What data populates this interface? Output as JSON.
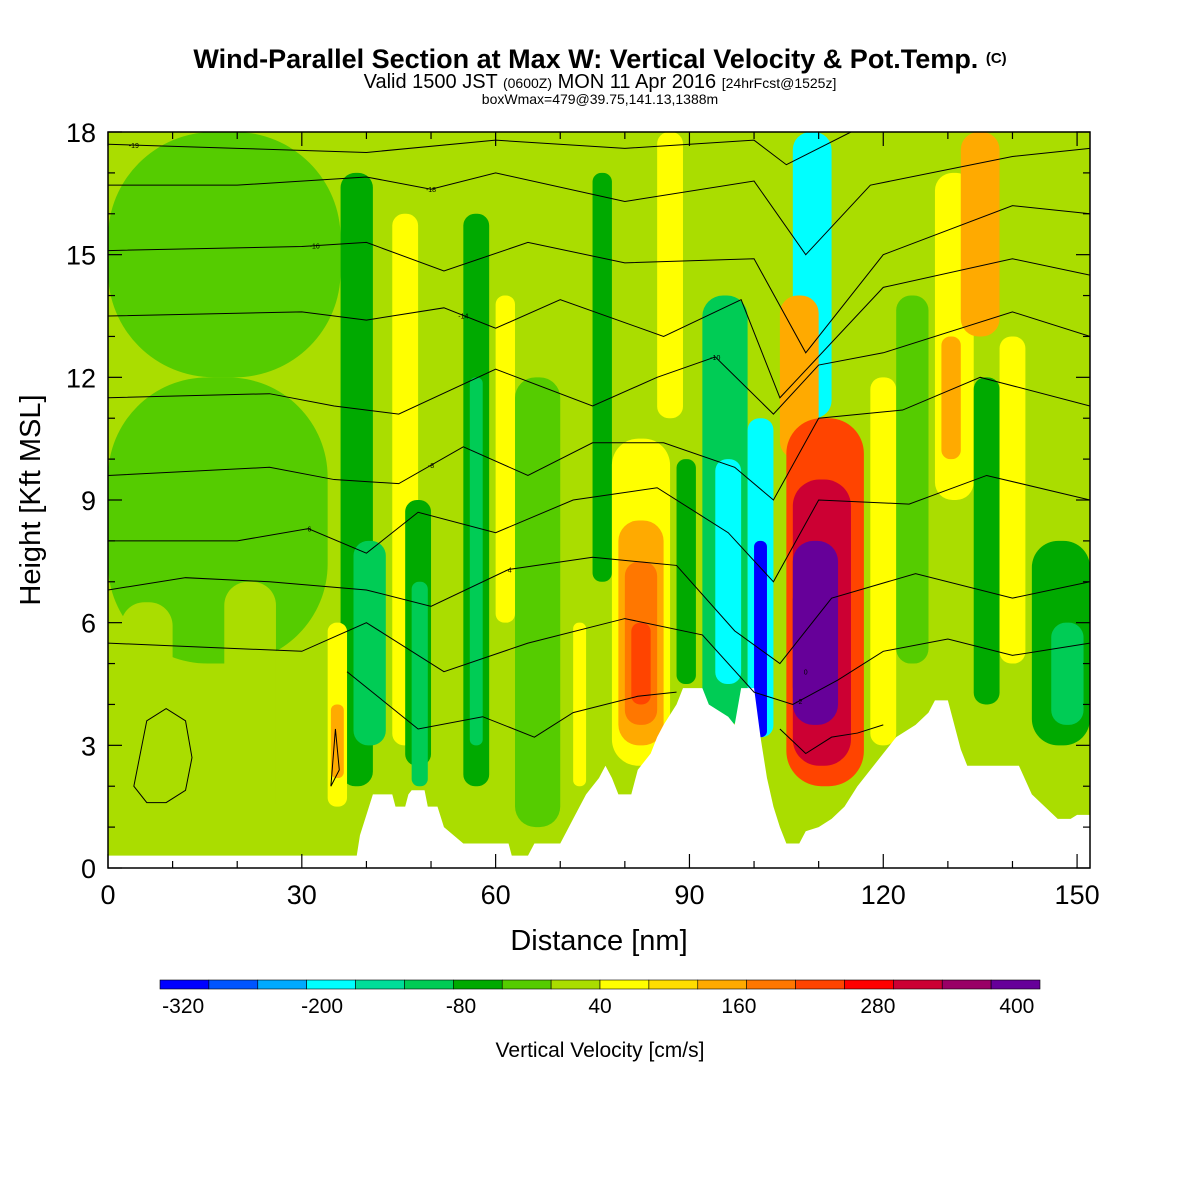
{
  "title": {
    "main": "Wind-Parallel Section at Max W: Vertical Velocity & Pot.Temp.",
    "copyright": "(C)",
    "valid_prefix": "Valid 1500 JST",
    "valid_utc": "(0600Z)",
    "valid_date": "MON 11 Apr 2016",
    "forecast": "[24hrFcst@1525z]",
    "box": "boxWmax=479@39.75,141.13,1388m"
  },
  "chart_data": {
    "type": "heatmap",
    "xlabel": "Distance [nm]",
    "ylabel": "Height [Kft MSL]",
    "xlim": [
      0,
      152
    ],
    "ylim": [
      0,
      18
    ],
    "x_ticks": [
      0,
      30,
      60,
      90,
      120,
      150
    ],
    "y_ticks": [
      0,
      3,
      6,
      9,
      12,
      15,
      18
    ],
    "x_tick_labels": [
      "0",
      "30",
      "60",
      "90",
      "120",
      "150"
    ],
    "y_tick_labels": [
      "0",
      "3",
      "6",
      "9",
      "12",
      "15",
      "18"
    ],
    "background_level": 0,
    "terrain_kft": [
      [
        0,
        0.3
      ],
      [
        38.5,
        0.3
      ],
      [
        39,
        0.8
      ],
      [
        40,
        1.3
      ],
      [
        41,
        1.8
      ],
      [
        44,
        1.8
      ],
      [
        44.5,
        1.5
      ],
      [
        46,
        1.5
      ],
      [
        46.5,
        1.8
      ],
      [
        47,
        1.9
      ],
      [
        49,
        1.9
      ],
      [
        49.5,
        1.5
      ],
      [
        51,
        1.5
      ],
      [
        52,
        1.0
      ],
      [
        55,
        0.6
      ],
      [
        62,
        0.6
      ],
      [
        62.5,
        0.3
      ],
      [
        65,
        0.3
      ],
      [
        66,
        0.6
      ],
      [
        70,
        0.6
      ],
      [
        71,
        0.9
      ],
      [
        72,
        1.2
      ],
      [
        74,
        1.8
      ],
      [
        76,
        2.2
      ],
      [
        77,
        2.5
      ],
      [
        78,
        2.2
      ],
      [
        79,
        1.8
      ],
      [
        81,
        1.8
      ],
      [
        82,
        2.4
      ],
      [
        84,
        2.8
      ],
      [
        85,
        3.2
      ],
      [
        86,
        3.5
      ],
      [
        88,
        4.0
      ],
      [
        89,
        4.4
      ],
      [
        92,
        4.4
      ],
      [
        93,
        4.0
      ],
      [
        96,
        3.7
      ],
      [
        97,
        3.5
      ],
      [
        98,
        4.4
      ],
      [
        100,
        4.4
      ],
      [
        101,
        3.2
      ],
      [
        102,
        2.2
      ],
      [
        103,
        1.5
      ],
      [
        104,
        1.0
      ],
      [
        105,
        0.6
      ],
      [
        107,
        0.6
      ],
      [
        108,
        0.9
      ],
      [
        110,
        1.0
      ],
      [
        112,
        1.2
      ],
      [
        114,
        1.5
      ],
      [
        116,
        2.0
      ],
      [
        118,
        2.4
      ],
      [
        120,
        2.8
      ],
      [
        122,
        3.2
      ],
      [
        125,
        3.5
      ],
      [
        127,
        3.8
      ],
      [
        128,
        4.1
      ],
      [
        130,
        4.1
      ],
      [
        131,
        3.5
      ],
      [
        132,
        2.9
      ],
      [
        133,
        2.5
      ],
      [
        141,
        2.5
      ],
      [
        143,
        1.8
      ],
      [
        145,
        1.5
      ],
      [
        147,
        1.2
      ],
      [
        149,
        1.2
      ],
      [
        150,
        1.3
      ],
      [
        152,
        1.3
      ]
    ],
    "cells": [
      {
        "x": [
          0,
          152
        ],
        "y": [
          0.3,
          18
        ],
        "value": 0
      },
      {
        "x": [
          0,
          36
        ],
        "y": [
          12,
          18
        ],
        "value": -40
      },
      {
        "x": [
          0,
          34
        ],
        "y": [
          5,
          12
        ],
        "value": -40
      },
      {
        "x": [
          2,
          10
        ],
        "y": [
          0.6,
          6.5
        ],
        "value": 0
      },
      {
        "x": [
          18,
          26
        ],
        "y": [
          1,
          7
        ],
        "value": 0
      },
      {
        "x": [
          36,
          41
        ],
        "y": [
          2,
          17
        ],
        "value": -80
      },
      {
        "x": [
          38,
          43
        ],
        "y": [
          3,
          8
        ],
        "value": -120
      },
      {
        "x": [
          34,
          37
        ],
        "y": [
          1.5,
          6
        ],
        "value": 40
      },
      {
        "x": [
          34.5,
          36.5
        ],
        "y": [
          2.2,
          4
        ],
        "value": 120
      },
      {
        "x": [
          44,
          48
        ],
        "y": [
          3,
          16
        ],
        "value": 40
      },
      {
        "x": [
          46,
          50
        ],
        "y": [
          2.5,
          9
        ],
        "value": -80
      },
      {
        "x": [
          47,
          49.5
        ],
        "y": [
          2,
          7
        ],
        "value": -120
      },
      {
        "x": [
          55,
          59
        ],
        "y": [
          2,
          16
        ],
        "value": -80
      },
      {
        "x": [
          56,
          58
        ],
        "y": [
          3,
          12
        ],
        "value": -120
      },
      {
        "x": [
          60,
          63
        ],
        "y": [
          6,
          14
        ],
        "value": 40
      },
      {
        "x": [
          63,
          70
        ],
        "y": [
          1,
          12
        ],
        "value": -40
      },
      {
        "x": [
          72,
          74
        ],
        "y": [
          2,
          6
        ],
        "value": 40
      },
      {
        "x": [
          75,
          78
        ],
        "y": [
          7,
          17
        ],
        "value": -80
      },
      {
        "x": [
          78,
          87
        ],
        "y": [
          2.5,
          10.5
        ],
        "value": 40
      },
      {
        "x": [
          79,
          86
        ],
        "y": [
          3,
          8.5
        ],
        "value": 120
      },
      {
        "x": [
          80,
          85
        ],
        "y": [
          3.5,
          7.5
        ],
        "value": 160
      },
      {
        "x": [
          81,
          84
        ],
        "y": [
          4,
          6
        ],
        "value": 200
      },
      {
        "x": [
          85,
          89
        ],
        "y": [
          11,
          18
        ],
        "value": 40
      },
      {
        "x": [
          88,
          91
        ],
        "y": [
          4.5,
          10
        ],
        "value": -80
      },
      {
        "x": [
          92,
          99
        ],
        "y": [
          3.5,
          14
        ],
        "value": -120
      },
      {
        "x": [
          94,
          98
        ],
        "y": [
          4.5,
          10
        ],
        "value": -200
      },
      {
        "x": [
          99,
          103
        ],
        "y": [
          3.2,
          11
        ],
        "value": -200
      },
      {
        "x": [
          100,
          102
        ],
        "y": [
          3.2,
          8
        ],
        "value": -320
      },
      {
        "x": [
          106,
          112
        ],
        "y": [
          11,
          18
        ],
        "value": -200
      },
      {
        "x": [
          104,
          110
        ],
        "y": [
          10,
          14
        ],
        "value": 120
      },
      {
        "x": [
          105,
          117
        ],
        "y": [
          2,
          11
        ],
        "value": 200
      },
      {
        "x": [
          106,
          115
        ],
        "y": [
          2.5,
          9.5
        ],
        "value": 280
      },
      {
        "x": [
          106,
          113
        ],
        "y": [
          3.5,
          8
        ],
        "value": 360
      },
      {
        "x": [
          106,
          112
        ],
        "y": [
          4,
          7
        ],
        "value": 400
      },
      {
        "x": [
          118,
          122
        ],
        "y": [
          3,
          12
        ],
        "value": 40
      },
      {
        "x": [
          122,
          127
        ],
        "y": [
          5,
          14
        ],
        "value": -40
      },
      {
        "x": [
          128,
          134
        ],
        "y": [
          9,
          17
        ],
        "value": 40
      },
      {
        "x": [
          129,
          132
        ],
        "y": [
          10,
          13
        ],
        "value": 120
      },
      {
        "x": [
          132,
          138
        ],
        "y": [
          13,
          18
        ],
        "value": 120
      },
      {
        "x": [
          134,
          138
        ],
        "y": [
          4,
          12
        ],
        "value": -80
      },
      {
        "x": [
          138,
          142
        ],
        "y": [
          5,
          13
        ],
        "value": 40
      },
      {
        "x": [
          143,
          152
        ],
        "y": [
          3,
          8
        ],
        "value": -80
      },
      {
        "x": [
          146,
          151
        ],
        "y": [
          3.5,
          6
        ],
        "value": -120
      }
    ],
    "theta_contours": [
      {
        "label": "-19",
        "label_x": 4,
        "points": [
          [
            0,
            17.7
          ],
          [
            20,
            17.6
          ],
          [
            40,
            17.5
          ],
          [
            60,
            17.8
          ],
          [
            80,
            17.6
          ],
          [
            100,
            17.8
          ],
          [
            105,
            17.2
          ],
          [
            115,
            18
          ]
        ]
      },
      {
        "label": "-18",
        "label_x": 50,
        "points": [
          [
            0,
            16.7
          ],
          [
            20,
            16.7
          ],
          [
            40,
            16.9
          ],
          [
            50,
            16.6
          ],
          [
            60,
            17.0
          ],
          [
            80,
            16.3
          ],
          [
            100,
            16.8
          ],
          [
            108,
            15.0
          ],
          [
            118,
            16.7
          ],
          [
            140,
            17.4
          ],
          [
            152,
            17.6
          ]
        ]
      },
      {
        "label": "-16",
        "label_x": 32,
        "points": [
          [
            0,
            15.1
          ],
          [
            30,
            15.2
          ],
          [
            40,
            15.3
          ],
          [
            52,
            14.6
          ],
          [
            65,
            15.3
          ],
          [
            80,
            14.8
          ],
          [
            100,
            14.9
          ],
          [
            108,
            12.6
          ],
          [
            120,
            15.0
          ],
          [
            140,
            16.2
          ],
          [
            152,
            16.0
          ]
        ]
      },
      {
        "label": "-14",
        "label_x": 55,
        "points": [
          [
            0,
            13.5
          ],
          [
            30,
            13.6
          ],
          [
            40,
            13.4
          ],
          [
            52,
            13.7
          ],
          [
            60,
            13.2
          ],
          [
            70,
            13.9
          ],
          [
            86,
            13.0
          ],
          [
            98,
            13.9
          ],
          [
            104,
            11.5
          ],
          [
            120,
            14.2
          ],
          [
            140,
            14.9
          ],
          [
            152,
            14.5
          ]
        ]
      },
      {
        "label": "-10",
        "label_x": 94,
        "points": [
          [
            0,
            11.5
          ],
          [
            25,
            11.6
          ],
          [
            35,
            11.3
          ],
          [
            45,
            11.1
          ],
          [
            60,
            12.2
          ],
          [
            75,
            11.3
          ],
          [
            85,
            12.0
          ],
          [
            94,
            12.5
          ],
          [
            103,
            11.1
          ],
          [
            110,
            12.3
          ],
          [
            120,
            12.6
          ],
          [
            140,
            13.6
          ],
          [
            152,
            13.0
          ]
        ]
      },
      {
        "label": "-8",
        "label_x": 50,
        "points": [
          [
            0,
            9.6
          ],
          [
            25,
            9.8
          ],
          [
            35,
            9.5
          ],
          [
            45,
            9.4
          ],
          [
            55,
            10.3
          ],
          [
            65,
            9.6
          ],
          [
            75,
            10.4
          ],
          [
            86,
            10.4
          ],
          [
            97,
            9.8
          ],
          [
            103,
            9.0
          ],
          [
            110,
            11.0
          ],
          [
            123,
            11.2
          ],
          [
            135,
            12.0
          ],
          [
            152,
            11.3
          ]
        ]
      },
      {
        "label": "-6",
        "label_x": 31,
        "points": [
          [
            0,
            8.0
          ],
          [
            20,
            8.0
          ],
          [
            31,
            8.3
          ],
          [
            40,
            7.7
          ],
          [
            48,
            8.7
          ],
          [
            60,
            8.2
          ],
          [
            72,
            9.0
          ],
          [
            85,
            9.3
          ],
          [
            96,
            8.2
          ],
          [
            103,
            7.0
          ],
          [
            110,
            9.0
          ],
          [
            124,
            8.9
          ],
          [
            136,
            9.6
          ],
          [
            152,
            9.0
          ]
        ]
      },
      {
        "label": "-4",
        "label_x": 62,
        "points": [
          [
            0,
            6.8
          ],
          [
            12,
            7.1
          ],
          [
            25,
            7.0
          ],
          [
            40,
            6.8
          ],
          [
            50,
            6.4
          ],
          [
            62,
            7.3
          ],
          [
            75,
            7.6
          ],
          [
            88,
            7.4
          ],
          [
            97,
            5.8
          ],
          [
            104,
            5.0
          ],
          [
            112,
            6.6
          ],
          [
            125,
            7.2
          ],
          [
            140,
            6.6
          ],
          [
            152,
            7.0
          ]
        ]
      },
      {
        "label": "-2",
        "label_x": 107,
        "points": [
          [
            0,
            5.5
          ],
          [
            15,
            5.4
          ],
          [
            30,
            5.3
          ],
          [
            40,
            6.0
          ],
          [
            52,
            4.8
          ],
          [
            65,
            5.5
          ],
          [
            80,
            6.1
          ],
          [
            92,
            5.7
          ],
          [
            100,
            4.3
          ],
          [
            106,
            4.0
          ],
          [
            113,
            4.6
          ],
          [
            120,
            5.3
          ],
          [
            130,
            5.6
          ],
          [
            140,
            5.2
          ],
          [
            152,
            5.5
          ]
        ]
      },
      {
        "label": "0",
        "label_x": 108,
        "points": [
          [
            37,
            4.8
          ],
          [
            48,
            3.4
          ],
          [
            58,
            3.7
          ],
          [
            66,
            3.2
          ],
          [
            72,
            3.8
          ],
          [
            82,
            4.2
          ],
          [
            88,
            4.3
          ]
        ]
      },
      {
        "label": "",
        "label_x": 0,
        "points": [
          [
            104,
            3.4
          ],
          [
            108,
            2.8
          ],
          [
            112,
            3.2
          ],
          [
            116,
            3.3
          ],
          [
            120,
            3.5
          ]
        ]
      }
    ],
    "closed_contours": [
      {
        "points": [
          [
            4,
            2.0
          ],
          [
            6,
            3.6
          ],
          [
            9,
            3.9
          ],
          [
            12,
            3.6
          ],
          [
            13,
            2.7
          ],
          [
            12,
            1.9
          ],
          [
            9,
            1.6
          ],
          [
            6,
            1.6
          ],
          [
            4,
            2.0
          ]
        ]
      },
      {
        "points": [
          [
            34.5,
            2.0
          ],
          [
            35.2,
            3.4
          ],
          [
            35.8,
            2.4
          ],
          [
            34.5,
            2.0
          ]
        ]
      }
    ],
    "colorbar": {
      "title": "Vertical Velocity [cm/s]",
      "min": -340,
      "max": 420,
      "step": 40,
      "colors": [
        "#0000ff",
        "#0055ff",
        "#00aaff",
        "#00ffff",
        "#00dd99",
        "#00cc55",
        "#00aa00",
        "#55cc00",
        "#aadd00",
        "#ffff00",
        "#ffdd00",
        "#ffaa00",
        "#ff7700",
        "#ff4400",
        "#ff0000",
        "#cc0033",
        "#990066",
        "#660099"
      ],
      "labels": [
        "-320",
        "-200",
        "-80",
        "40",
        "160",
        "280",
        "400"
      ],
      "label_values": [
        -320,
        -200,
        -80,
        40,
        160,
        280,
        400
      ]
    }
  }
}
